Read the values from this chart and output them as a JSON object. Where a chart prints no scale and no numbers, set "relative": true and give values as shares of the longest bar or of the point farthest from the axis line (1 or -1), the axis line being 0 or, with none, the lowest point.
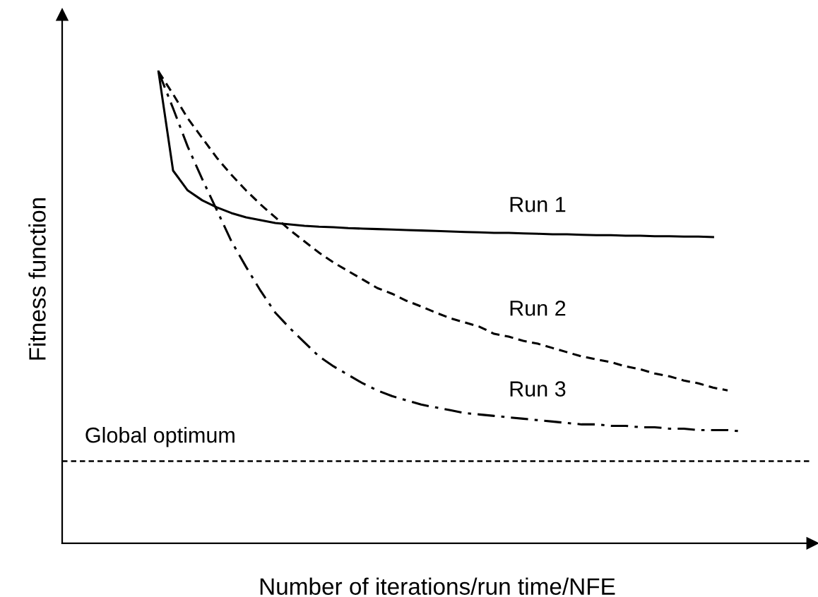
{
  "chart_data": {
    "type": "line",
    "relative": true,
    "xlabel": "Number of iterations/run time/NFE",
    "ylabel": "Fitness function",
    "legend": false,
    "categories": [
      null,
      null,
      null,
      null,
      null,
      null,
      null,
      null,
      null,
      null,
      null,
      null,
      null,
      null,
      null,
      null,
      null,
      null,
      null,
      null,
      null,
      null,
      null,
      null,
      null,
      null,
      null,
      null,
      null,
      null,
      null,
      null,
      null,
      null,
      null,
      null,
      null,
      null,
      null,
      null,
      null
    ],
    "series": [
      {
        "name": "Run 1",
        "color": "#000000",
        "line_style": "solid",
        "values": [
          1.0,
          0.79,
          0.748,
          0.727,
          0.712,
          0.7,
          0.691,
          0.685,
          0.679,
          0.676,
          0.673,
          0.671,
          0.67,
          0.668,
          0.667,
          0.666,
          0.665,
          0.664,
          0.663,
          0.662,
          0.661,
          0.66,
          0.659,
          0.658,
          0.658,
          0.657,
          0.656,
          0.655,
          0.655,
          0.654,
          0.653,
          0.653,
          0.652,
          0.652,
          0.651,
          0.651,
          0.65,
          0.65,
          0.649,
          null,
          null
        ]
      },
      {
        "name": "Run 2",
        "color": "#000000",
        "line_style": "dashed",
        "values": [
          1.0,
          0.952,
          0.901,
          0.859,
          0.817,
          0.781,
          0.748,
          0.718,
          0.691,
          0.664,
          0.64,
          0.616,
          0.595,
          0.577,
          0.559,
          0.541,
          0.529,
          0.514,
          0.502,
          0.489,
          0.477,
          0.468,
          0.459,
          0.444,
          0.438,
          0.429,
          0.423,
          0.414,
          0.405,
          0.396,
          0.39,
          0.384,
          0.375,
          0.369,
          0.36,
          0.354,
          0.345,
          0.339,
          0.33,
          0.324,
          null
        ]
      },
      {
        "name": "Run 3",
        "color": "#000000",
        "line_style": "dashdot",
        "values": [
          1.0,
          0.922,
          0.841,
          0.772,
          0.706,
          0.64,
          0.586,
          0.535,
          0.489,
          0.456,
          0.426,
          0.396,
          0.375,
          0.357,
          0.339,
          0.324,
          0.312,
          0.303,
          0.294,
          0.288,
          0.282,
          0.276,
          0.273,
          0.27,
          0.267,
          0.264,
          0.261,
          0.258,
          0.255,
          0.252,
          0.252,
          0.249,
          0.249,
          0.246,
          0.246,
          0.243,
          0.243,
          0.24,
          0.24,
          0.24,
          0.237
        ]
      }
    ],
    "ref_lines": [
      {
        "axis": "y",
        "value": 0.174,
        "label": "Global optimum",
        "color": "#000000",
        "line_style": "dashed"
      }
    ]
  }
}
